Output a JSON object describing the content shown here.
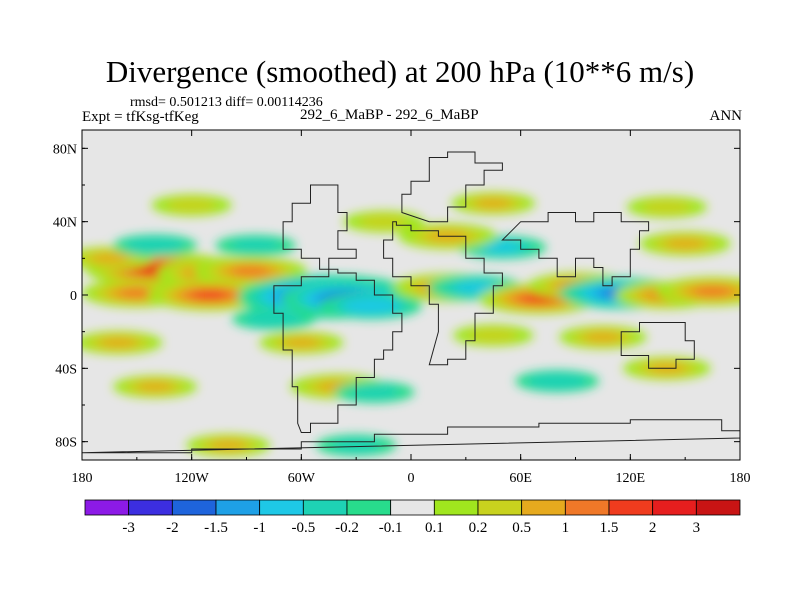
{
  "header": {
    "title": "Divergence (smoothed) at 200 hPa (10**6 m/s)",
    "stats": "rmsd= 0.501213 diff= 0.00114236",
    "experiment": "Expt = tfKsg-tfKeg",
    "subtitle": "292_6_MaBP - 292_6_MaBP",
    "season": "ANN"
  },
  "chart_data": {
    "type": "heatmap",
    "title": "Divergence (smoothed) at 200 hPa (10**6 m/s)",
    "variable": "Divergence (smoothed) at 200 hPa",
    "units": "10**6 m/s",
    "x_range": [
      -180,
      180
    ],
    "y_range": [
      -90,
      90
    ],
    "x_ticks": [
      {
        "value": -180,
        "label": "180"
      },
      {
        "value": -120,
        "label": "120W"
      },
      {
        "value": -60,
        "label": "60W"
      },
      {
        "value": 0,
        "label": "0"
      },
      {
        "value": 60,
        "label": "60E"
      },
      {
        "value": 120,
        "label": "120E"
      },
      {
        "value": 180,
        "label": "180"
      }
    ],
    "y_ticks": [
      {
        "value": 80,
        "label": "80N"
      },
      {
        "value": 40,
        "label": "40N"
      },
      {
        "value": 0,
        "label": "0"
      },
      {
        "value": -40,
        "label": "40S"
      },
      {
        "value": -80,
        "label": "80S"
      }
    ],
    "colorbar": {
      "levels": [
        "-3",
        "-2",
        "-1.5",
        "-1",
        "-0.5",
        "-0.2",
        "-0.1",
        "0.1",
        "0.2",
        "0.5",
        "1",
        "1.5",
        "2",
        "3"
      ],
      "colors": [
        "#8c1ae6",
        "#3c2ee0",
        "#1e64dc",
        "#1ea0e6",
        "#1ec8e6",
        "#1ed2b4",
        "#28dc8c",
        "#e6e6e6",
        "#a0e61e",
        "#c8d21e",
        "#e6aa1e",
        "#f07828",
        "#f03c1e",
        "#e61e1e",
        "#c81414"
      ]
    },
    "features": [
      {
        "lon": -138,
        "lat": 14,
        "value": 2.2
      },
      {
        "lon": -103,
        "lat": 12,
        "value": 1.8
      },
      {
        "lon": -88,
        "lat": 13,
        "value": 1.3
      },
      {
        "lon": -150,
        "lat": 1,
        "value": 1.2
      },
      {
        "lon": -110,
        "lat": 0,
        "value": 1.6
      },
      {
        "lon": -45,
        "lat": -1,
        "value": -3.2
      },
      {
        "lon": -33,
        "lat": -2,
        "value": -2.0
      },
      {
        "lon": -22,
        "lat": -6,
        "value": -1.0
      },
      {
        "lon": 20,
        "lat": 4,
        "value": 1.2
      },
      {
        "lon": 35,
        "lat": 4,
        "value": -0.8
      },
      {
        "lon": 70,
        "lat": -2,
        "value": 1.5
      },
      {
        "lon": 92,
        "lat": 5,
        "value": 1.0
      },
      {
        "lon": 115,
        "lat": 1,
        "value": -1.6
      },
      {
        "lon": 140,
        "lat": 0,
        "value": 1.1
      },
      {
        "lon": 165,
        "lat": 2,
        "value": 1.3
      },
      {
        "lon": -165,
        "lat": 20,
        "value": 0.6
      },
      {
        "lon": -140,
        "lat": 27,
        "value": -0.5
      },
      {
        "lon": -85,
        "lat": 27,
        "value": -0.4
      },
      {
        "lon": 50,
        "lat": 26,
        "value": -0.6
      },
      {
        "lon": 150,
        "lat": 28,
        "value": 0.7
      },
      {
        "lon": 20,
        "lat": 32,
        "value": 0.9
      },
      {
        "lon": -160,
        "lat": -26,
        "value": 0.6
      },
      {
        "lon": -140,
        "lat": -50,
        "value": 0.5
      },
      {
        "lon": -75,
        "lat": -13,
        "value": -0.5
      },
      {
        "lon": -60,
        "lat": -26,
        "value": 0.5
      },
      {
        "lon": -40,
        "lat": -50,
        "value": 0.8
      },
      {
        "lon": -20,
        "lat": -53,
        "value": -0.4
      },
      {
        "lon": 45,
        "lat": -22,
        "value": 0.4
      },
      {
        "lon": 80,
        "lat": -47,
        "value": -0.5
      },
      {
        "lon": 105,
        "lat": -23,
        "value": 0.6
      },
      {
        "lon": 140,
        "lat": -40,
        "value": 0.6
      },
      {
        "lon": -100,
        "lat": -82,
        "value": 0.5
      },
      {
        "lon": -30,
        "lat": -82,
        "value": -0.4
      },
      {
        "lon": -120,
        "lat": 49,
        "value": 0.4
      },
      {
        "lon": -15,
        "lat": 40,
        "value": 0.4
      },
      {
        "lon": 45,
        "lat": 50,
        "value": 0.5
      },
      {
        "lon": 140,
        "lat": 48,
        "value": 0.4
      }
    ]
  }
}
